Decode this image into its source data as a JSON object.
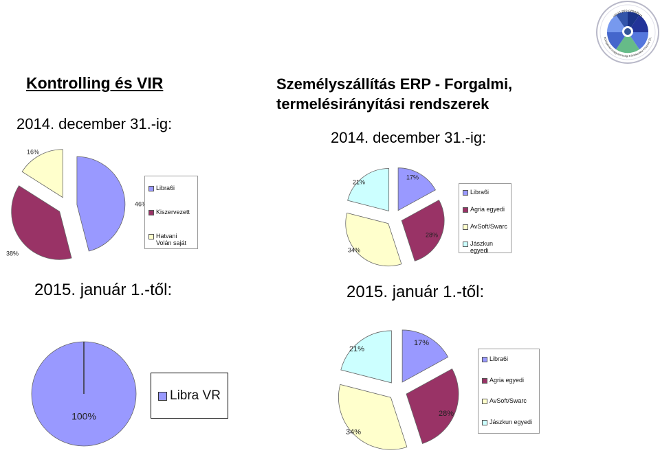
{
  "left_panel": {
    "title": "Kontrolling és VIR",
    "date_label": "2014. december 31.-ig:",
    "since_label": "2015. január 1.-től:"
  },
  "right_panel": {
    "title_line1": "Személyszállítás ERP - Forgalmi,",
    "title_line2": "termelésirányítási rendszerek",
    "date_label": "2014. december 31.-ig:",
    "since_label": "2015. január 1.-től:"
  },
  "logo": {
    "top_text": "unus pro omnibus",
    "ring_text": "Középkelet-magyarországi Közlekedési Központ Zrt."
  },
  "chart_data": [
    {
      "id": "left-2014",
      "type": "pie",
      "exploded": true,
      "slices": [
        {
          "name": "Libra6i",
          "value": 46,
          "label": "46%",
          "color": "#9999ff"
        },
        {
          "name": "Kiszervezett",
          "value": 38,
          "label": "38%",
          "color": "#993366"
        },
        {
          "name": "Hatvani Volán saját",
          "value": 16,
          "label": "16%",
          "color": "#ffffcc"
        }
      ],
      "legend": {
        "placement": "right",
        "entries": [
          "Libra6i",
          "Kiszervezett",
          "Hatvani Volán saját"
        ]
      }
    },
    {
      "id": "right-2014",
      "type": "pie",
      "exploded": true,
      "slices": [
        {
          "name": "Libra6i",
          "value": 17,
          "label": "17%",
          "color": "#9999ff"
        },
        {
          "name": "Agria egyedi",
          "value": 28,
          "label": "28%",
          "color": "#993366"
        },
        {
          "name": "AvSoft/Swarc",
          "value": 34,
          "label": "34%",
          "color": "#ffffcc"
        },
        {
          "name": "Jászkun egyedi",
          "value": 21,
          "label": "21%",
          "color": "#ccffff"
        }
      ],
      "legend": {
        "placement": "right",
        "entries": [
          "Libra6i",
          "Agria egyedi",
          "AvSoft/Swarc",
          "Jászkun egyedi"
        ]
      }
    },
    {
      "id": "left-2015",
      "type": "pie",
      "exploded": false,
      "slices": [
        {
          "name": "Libra VR",
          "value": 100,
          "label": "100%",
          "color": "#9999ff"
        }
      ],
      "legend": {
        "placement": "right",
        "entries": [
          "Libra VR"
        ]
      }
    },
    {
      "id": "right-2015",
      "type": "pie",
      "exploded": true,
      "slices": [
        {
          "name": "Libra6i",
          "value": 17,
          "label": "17%",
          "color": "#9999ff"
        },
        {
          "name": "Agria egyedi",
          "value": 28,
          "label": "28%",
          "color": "#993366"
        },
        {
          "name": "AvSoft/Swarc",
          "value": 34,
          "label": "34%",
          "color": "#ffffcc"
        },
        {
          "name": "Jászkun egyedi",
          "value": 21,
          "label": "21%",
          "color": "#ccffff"
        }
      ],
      "legend": {
        "placement": "right",
        "entries": [
          "Libra6i",
          "Agria egyedi",
          "AvSoft/Swarc",
          "Jászkun egyedi"
        ]
      }
    }
  ]
}
